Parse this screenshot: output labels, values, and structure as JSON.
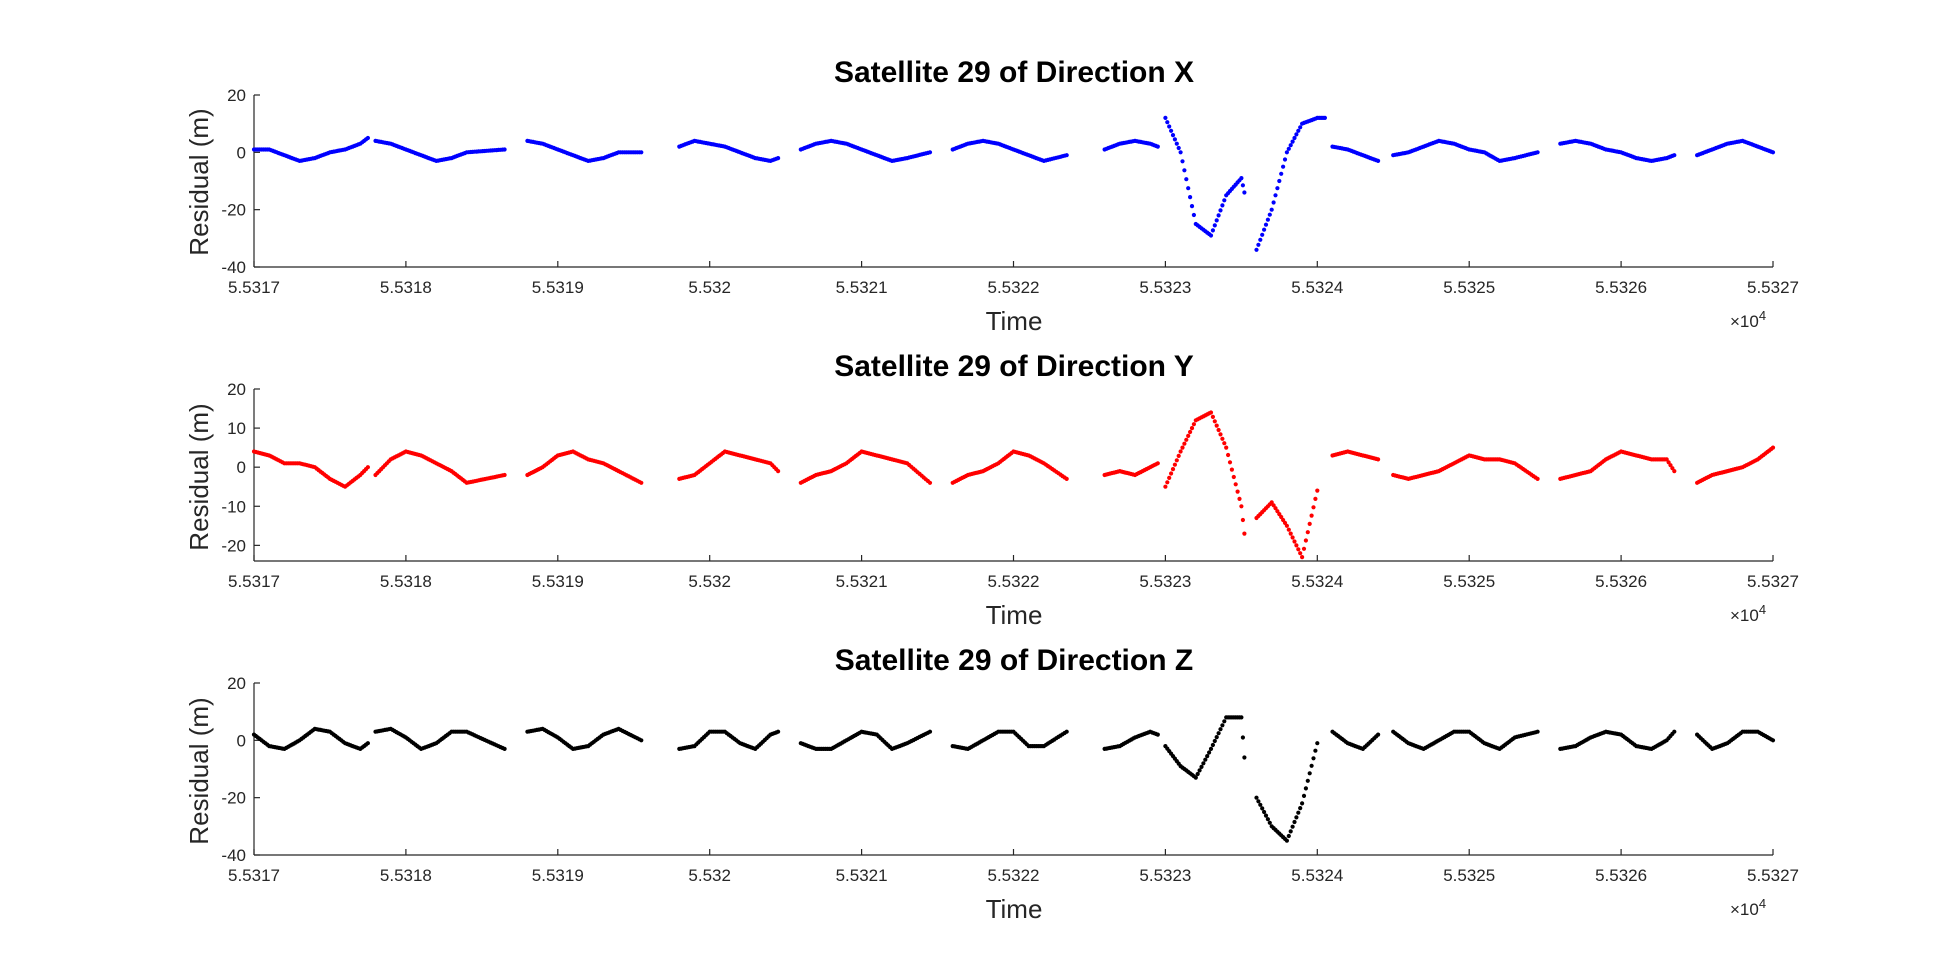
{
  "chart_data": [
    {
      "type": "scatter",
      "title": "Satellite 29 of Direction X",
      "xlabel": "Time",
      "ylabel": "Residual (m)",
      "x_exponent_base": "×10",
      "x_exponent_power": "4",
      "xlim": [
        5.5317,
        5.5327
      ],
      "ylim": [
        -40,
        20
      ],
      "xticks": [
        "5.5317",
        "5.5318",
        "5.5319",
        "5.532",
        "5.5321",
        "5.5322",
        "5.5323",
        "5.5324",
        "5.5325",
        "5.5326",
        "5.5327"
      ],
      "yticks": [
        "-40",
        "-20",
        "0",
        "20"
      ],
      "color": "#0000ff",
      "series": [
        {
          "x": [
            5.5317,
            5.53171,
            5.53172,
            5.53173,
            5.53174,
            5.53175,
            5.53176,
            5.53177,
            5.531775
          ],
          "y": [
            1,
            1,
            -1,
            -3,
            -2,
            0,
            1,
            3,
            5
          ]
        },
        {
          "x": [
            5.53178,
            5.53179,
            5.5318,
            5.53181,
            5.53182,
            5.53183,
            5.53184,
            5.531865
          ],
          "y": [
            4,
            3,
            1,
            -1,
            -3,
            -2,
            0,
            1
          ]
        },
        {
          "x": [
            5.53188,
            5.53189,
            5.5319,
            5.53191,
            5.53192,
            5.53193,
            5.53194,
            5.531955
          ],
          "y": [
            4,
            3,
            1,
            -1,
            -3,
            -2,
            0,
            0
          ]
        },
        {
          "x": [
            5.53198,
            5.53199,
            5.532,
            5.53201,
            5.53202,
            5.53203,
            5.53204,
            5.532045
          ],
          "y": [
            2,
            4,
            3,
            2,
            0,
            -2,
            -3,
            -2
          ]
        },
        {
          "x": [
            5.53206,
            5.53207,
            5.53208,
            5.53209,
            5.5321,
            5.53211,
            5.53212,
            5.53213,
            5.532145
          ],
          "y": [
            1,
            3,
            4,
            3,
            1,
            -1,
            -3,
            -2,
            0
          ]
        },
        {
          "x": [
            5.53216,
            5.53217,
            5.53218,
            5.53219,
            5.5322,
            5.53221,
            5.53222,
            5.532235
          ],
          "y": [
            1,
            3,
            4,
            3,
            1,
            -1,
            -3,
            -1
          ]
        },
        {
          "x": [
            5.53226,
            5.53227,
            5.53228,
            5.53229,
            5.532295
          ],
          "y": [
            1,
            3,
            4,
            3,
            2
          ]
        },
        {
          "x": [
            5.5323,
            5.53231,
            5.53232,
            5.53233,
            5.53234,
            5.53235,
            5.532352
          ],
          "y": [
            12,
            0,
            -25,
            -29,
            -15,
            -9,
            -14
          ]
        },
        {
          "x": [
            5.53236,
            5.53237,
            5.53238,
            5.53239,
            5.5324,
            5.532405
          ],
          "y": [
            -34,
            -20,
            0,
            10,
            12,
            12
          ]
        },
        {
          "x": [
            5.53241,
            5.53242,
            5.53243,
            5.53244
          ],
          "y": [
            2,
            1,
            -1,
            -3
          ]
        },
        {
          "x": [
            5.53245,
            5.53246,
            5.53247,
            5.53248,
            5.53249,
            5.5325,
            5.53251,
            5.53252,
            5.53253,
            5.532545
          ],
          "y": [
            -1,
            0,
            2,
            4,
            3,
            1,
            0,
            -3,
            -2,
            0
          ]
        },
        {
          "x": [
            5.53256,
            5.53257,
            5.53258,
            5.53259,
            5.5326,
            5.53261,
            5.53262,
            5.53263,
            5.532635
          ],
          "y": [
            3,
            4,
            3,
            1,
            0,
            -2,
            -3,
            -2,
            -1
          ]
        },
        {
          "x": [
            5.53265,
            5.53266,
            5.53267,
            5.53268,
            5.53269,
            5.5327
          ],
          "y": [
            -1,
            1,
            3,
            4,
            2,
            0
          ]
        }
      ]
    },
    {
      "type": "scatter",
      "title": "Satellite 29 of Direction Y",
      "xlabel": "Time",
      "ylabel": "Residual (m)",
      "x_exponent_base": "×10",
      "x_exponent_power": "4",
      "xlim": [
        5.5317,
        5.5327
      ],
      "ylim": [
        -24,
        20
      ],
      "xticks": [
        "5.5317",
        "5.5318",
        "5.5319",
        "5.532",
        "5.5321",
        "5.5322",
        "5.5323",
        "5.5324",
        "5.5325",
        "5.5326",
        "5.5327"
      ],
      "yticks": [
        "-20",
        "-10",
        "0",
        "10",
        "20"
      ],
      "color": "#ff0000",
      "series": [
        {
          "x": [
            5.5317,
            5.53171,
            5.53172,
            5.53173,
            5.53174,
            5.53175,
            5.53176,
            5.53177,
            5.531775
          ],
          "y": [
            4,
            3,
            1,
            1,
            0,
            -3,
            -5,
            -2,
            0
          ]
        },
        {
          "x": [
            5.53178,
            5.53179,
            5.5318,
            5.53181,
            5.53182,
            5.53183,
            5.53184,
            5.531865
          ],
          "y": [
            -2,
            2,
            4,
            3,
            1,
            -1,
            -4,
            -2
          ]
        },
        {
          "x": [
            5.53188,
            5.53189,
            5.5319,
            5.53191,
            5.53192,
            5.53193,
            5.53194,
            5.531955
          ],
          "y": [
            -2,
            0,
            3,
            4,
            2,
            1,
            -1,
            -4
          ]
        },
        {
          "x": [
            5.53198,
            5.53199,
            5.532,
            5.53201,
            5.53202,
            5.53203,
            5.53204,
            5.532045
          ],
          "y": [
            -3,
            -2,
            1,
            4,
            3,
            2,
            1,
            -1
          ]
        },
        {
          "x": [
            5.53206,
            5.53207,
            5.53208,
            5.53209,
            5.5321,
            5.53211,
            5.53212,
            5.53213,
            5.532145
          ],
          "y": [
            -4,
            -2,
            -1,
            1,
            4,
            3,
            2,
            1,
            -4
          ]
        },
        {
          "x": [
            5.53216,
            5.53217,
            5.53218,
            5.53219,
            5.5322,
            5.53221,
            5.53222,
            5.532235
          ],
          "y": [
            -4,
            -2,
            -1,
            1,
            4,
            3,
            1,
            -3
          ]
        },
        {
          "x": [
            5.53226,
            5.53227,
            5.53228,
            5.53229,
            5.532295
          ],
          "y": [
            -2,
            -1,
            -2,
            0,
            1
          ]
        },
        {
          "x": [
            5.5323,
            5.53231,
            5.53232,
            5.53233,
            5.53234,
            5.53235,
            5.532352
          ],
          "y": [
            -5,
            4,
            12,
            14,
            5,
            -10,
            -17
          ]
        },
        {
          "x": [
            5.53236,
            5.53237,
            5.53238,
            5.53239,
            5.5324
          ],
          "y": [
            -13,
            -9,
            -15,
            -23,
            -6
          ]
        },
        {
          "x": [
            5.53241,
            5.53242,
            5.53243,
            5.53244
          ],
          "y": [
            3,
            4,
            3,
            2
          ]
        },
        {
          "x": [
            5.53245,
            5.53246,
            5.53247,
            5.53248,
            5.53249,
            5.5325,
            5.53251,
            5.53252,
            5.53253,
            5.532545
          ],
          "y": [
            -2,
            -3,
            -2,
            -1,
            1,
            3,
            2,
            2,
            1,
            -3
          ]
        },
        {
          "x": [
            5.53256,
            5.53257,
            5.53258,
            5.53259,
            5.5326,
            5.53261,
            5.53262,
            5.53263,
            5.532635
          ],
          "y": [
            -3,
            -2,
            -1,
            2,
            4,
            3,
            2,
            2,
            -1
          ]
        },
        {
          "x": [
            5.53265,
            5.53266,
            5.53267,
            5.53268,
            5.53269,
            5.5327
          ],
          "y": [
            -4,
            -2,
            -1,
            0,
            2,
            5
          ]
        }
      ]
    },
    {
      "type": "scatter",
      "title": "Satellite 29 of Direction Z",
      "xlabel": "Time",
      "ylabel": "Residual (m)",
      "x_exponent_base": "×10",
      "x_exponent_power": "4",
      "xlim": [
        5.5317,
        5.5327
      ],
      "ylim": [
        -40,
        20
      ],
      "xticks": [
        "5.5317",
        "5.5318",
        "5.5319",
        "5.532",
        "5.5321",
        "5.5322",
        "5.5323",
        "5.5324",
        "5.5325",
        "5.5326",
        "5.5327"
      ],
      "yticks": [
        "-40",
        "-20",
        "0",
        "20"
      ],
      "color": "#000000",
      "series": [
        {
          "x": [
            5.5317,
            5.53171,
            5.53172,
            5.53173,
            5.53174,
            5.53175,
            5.53176,
            5.53177,
            5.531775
          ],
          "y": [
            2,
            -2,
            -3,
            0,
            4,
            3,
            -1,
            -3,
            -1
          ]
        },
        {
          "x": [
            5.53178,
            5.53179,
            5.5318,
            5.53181,
            5.53182,
            5.53183,
            5.53184,
            5.531865
          ],
          "y": [
            3,
            4,
            1,
            -3,
            -1,
            3,
            3,
            -3
          ]
        },
        {
          "x": [
            5.53188,
            5.53189,
            5.5319,
            5.53191,
            5.53192,
            5.53193,
            5.53194,
            5.531955
          ],
          "y": [
            3,
            4,
            1,
            -3,
            -2,
            2,
            4,
            0
          ]
        },
        {
          "x": [
            5.53198,
            5.53199,
            5.532,
            5.53201,
            5.53202,
            5.53203,
            5.53204,
            5.532045
          ],
          "y": [
            -3,
            -2,
            3,
            3,
            -1,
            -3,
            2,
            3
          ]
        },
        {
          "x": [
            5.53206,
            5.53207,
            5.53208,
            5.53209,
            5.5321,
            5.53211,
            5.53212,
            5.53213,
            5.532145
          ],
          "y": [
            -1,
            -3,
            -3,
            0,
            3,
            2,
            -3,
            -1,
            3
          ]
        },
        {
          "x": [
            5.53216,
            5.53217,
            5.53218,
            5.53219,
            5.5322,
            5.53221,
            5.53222,
            5.532235
          ],
          "y": [
            -2,
            -3,
            0,
            3,
            3,
            -2,
            -2,
            3
          ]
        },
        {
          "x": [
            5.53226,
            5.53227,
            5.53228,
            5.53229,
            5.532295
          ],
          "y": [
            -3,
            -2,
            1,
            3,
            2
          ]
        },
        {
          "x": [
            5.5323,
            5.53231,
            5.53232,
            5.53233,
            5.53234,
            5.53235,
            5.532352
          ],
          "y": [
            -2,
            -9,
            -13,
            -3,
            8,
            8,
            -6
          ]
        },
        {
          "x": [
            5.53236,
            5.53237,
            5.53238,
            5.53239,
            5.5324
          ],
          "y": [
            -20,
            -30,
            -35,
            -22,
            -1
          ]
        },
        {
          "x": [
            5.53241,
            5.53242,
            5.53243,
            5.53244
          ],
          "y": [
            3,
            -1,
            -3,
            2
          ]
        },
        {
          "x": [
            5.53245,
            5.53246,
            5.53247,
            5.53248,
            5.53249,
            5.5325,
            5.53251,
            5.53252,
            5.53253,
            5.532545
          ],
          "y": [
            3,
            -1,
            -3,
            0,
            3,
            3,
            -1,
            -3,
            1,
            3
          ]
        },
        {
          "x": [
            5.53256,
            5.53257,
            5.53258,
            5.53259,
            5.5326,
            5.53261,
            5.53262,
            5.53263,
            5.532635
          ],
          "y": [
            -3,
            -2,
            1,
            3,
            2,
            -2,
            -3,
            0,
            3
          ]
        },
        {
          "x": [
            5.53265,
            5.53266,
            5.53267,
            5.53268,
            5.53269,
            5.5327
          ],
          "y": [
            2,
            -3,
            -1,
            3,
            3,
            0
          ]
        }
      ]
    }
  ]
}
